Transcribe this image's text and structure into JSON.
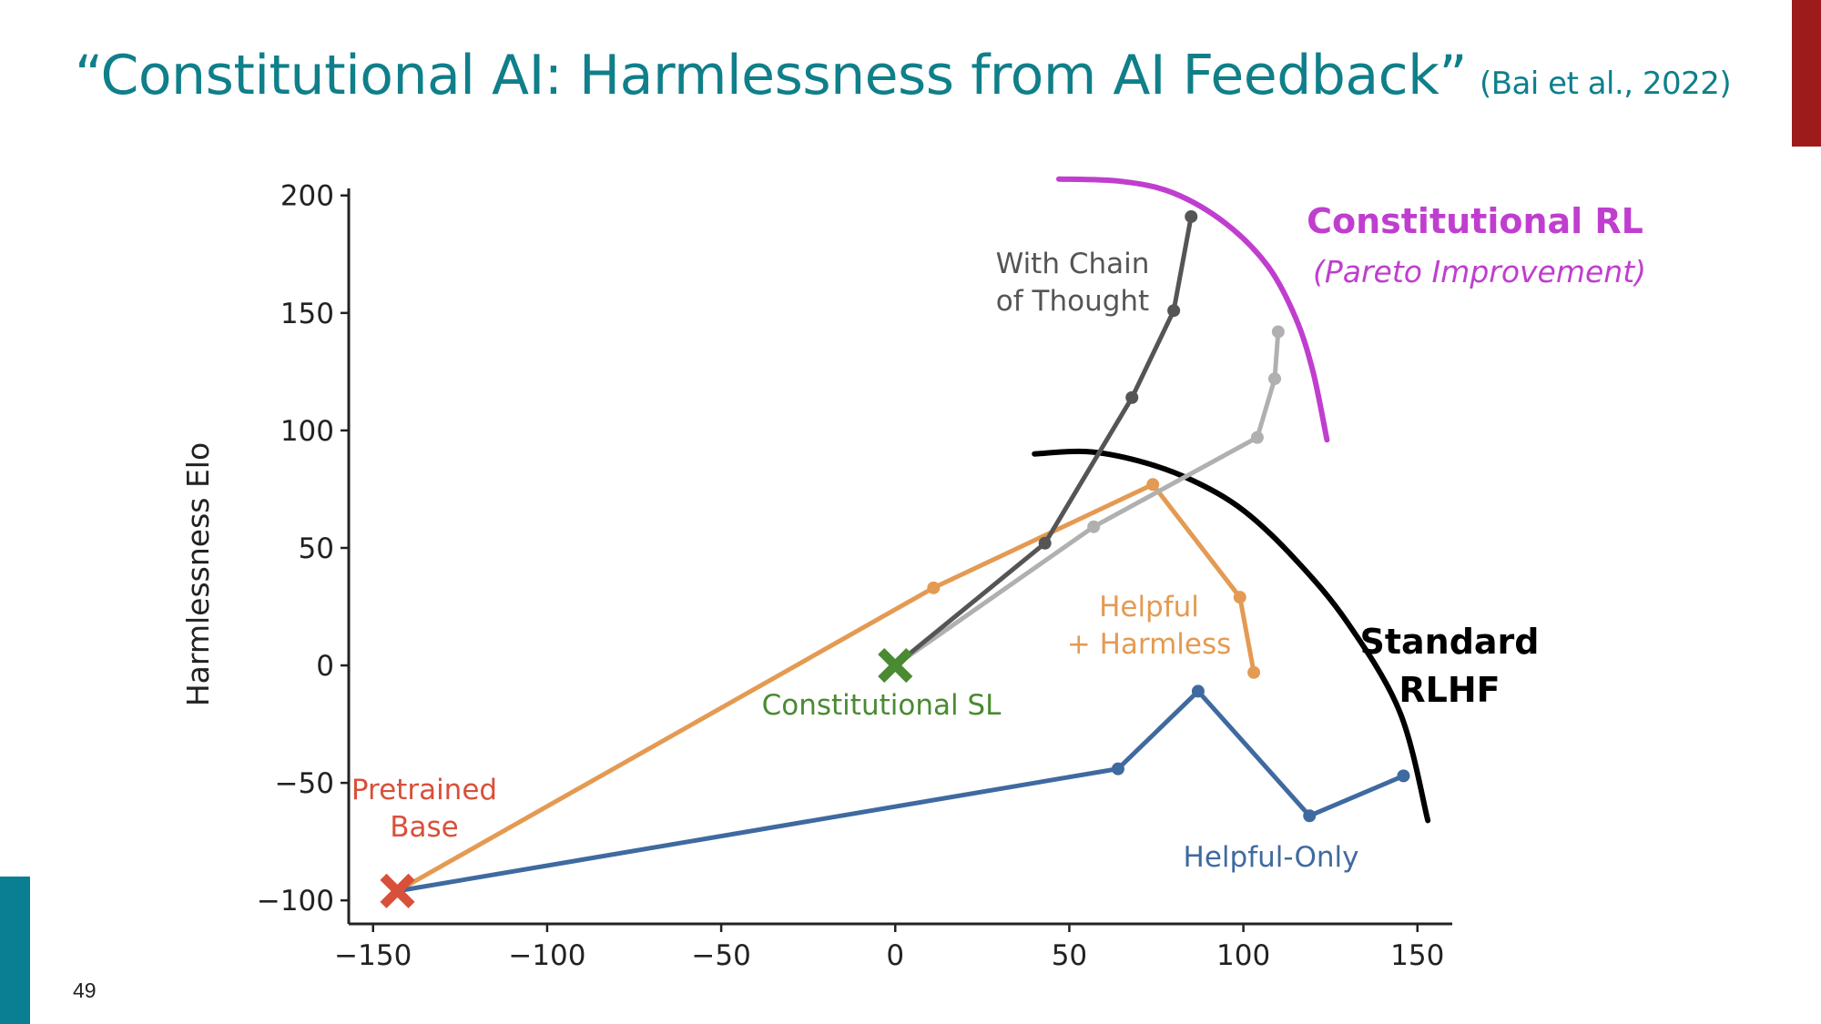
{
  "slide": {
    "title": "“Constitutional AI: Harmlessness from AI Feedback”",
    "citation": "(Bai et al., 2022)",
    "page_number": "49",
    "accent_top_color": "#9e1b1b",
    "accent_bottom_color": "#0a7f93",
    "title_color": "#0f7f8a"
  },
  "chart_data": {
    "type": "line",
    "xlabel": "",
    "ylabel": "Harmlessness Elo",
    "xlim": [
      -157,
      160
    ],
    "ylim": [
      -110,
      203
    ],
    "xticks": [
      -150,
      -100,
      -50,
      0,
      50,
      100,
      150
    ],
    "xtick_labels": [
      "−150",
      "−100",
      "−50",
      "0",
      "50",
      "100",
      "150"
    ],
    "yticks": [
      -100,
      -50,
      0,
      50,
      100,
      150,
      200
    ],
    "ytick_labels": [
      "−100",
      "−50",
      "0",
      "50",
      "100",
      "150",
      "200"
    ],
    "series": [
      {
        "name": "Helpful-Only",
        "color": "#3f6aa0",
        "points": [
          [
            -143,
            -96
          ],
          [
            64,
            -44
          ],
          [
            87,
            -11
          ],
          [
            119,
            -64
          ],
          [
            146,
            -47
          ]
        ]
      },
      {
        "name": "Helpful + Harmless",
        "color": "#e49a52",
        "points": [
          [
            -143,
            -96
          ],
          [
            11,
            33
          ],
          [
            74,
            77
          ],
          [
            99,
            29
          ],
          [
            103,
            -3
          ]
        ]
      },
      {
        "name": "Constitutional RL",
        "color": "#b0b0b0",
        "points": [
          [
            0,
            0
          ],
          [
            57,
            59
          ],
          [
            104,
            97
          ],
          [
            109,
            122
          ],
          [
            110,
            142
          ]
        ]
      },
      {
        "name": "With Chain of Thought",
        "color": "#555555",
        "points": [
          [
            0,
            0
          ],
          [
            43,
            52
          ],
          [
            68,
            114
          ],
          [
            80,
            151
          ],
          [
            85,
            191
          ]
        ]
      }
    ],
    "markers": [
      {
        "name": "Pretrained Base",
        "x": -143,
        "y": -96,
        "color": "#d9503a",
        "symbol": "X"
      },
      {
        "name": "Constitutional SL",
        "x": 0,
        "y": 0,
        "color": "#4a8a32",
        "symbol": "X"
      }
    ],
    "frontiers": [
      {
        "name": "Standard RLHF",
        "color": "#000000",
        "points": [
          [
            40,
            90
          ],
          [
            55,
            91
          ],
          [
            70,
            87
          ],
          [
            85,
            79
          ],
          [
            100,
            66
          ],
          [
            115,
            45
          ],
          [
            130,
            18
          ],
          [
            145,
            -20
          ],
          [
            153,
            -66
          ]
        ]
      },
      {
        "name": "Constitutional RL (Pareto Improvement)",
        "color": "#c03ecf",
        "points": [
          [
            47,
            207
          ],
          [
            65,
            206
          ],
          [
            80,
            201
          ],
          [
            95,
            188
          ],
          [
            107,
            170
          ],
          [
            115,
            148
          ],
          [
            120,
            125
          ],
          [
            124,
            96
          ]
        ]
      }
    ],
    "annotations": {
      "with_cot_line1": "With Chain",
      "with_cot_line2": "of Thought",
      "const_rl": "Constitutional RL",
      "pareto": "(Pareto Improvement)",
      "standard_line1": "Standard",
      "standard_line2": "RLHF",
      "helpful_harmless_line1": "Helpful",
      "helpful_harmless_line2": "+ Harmless",
      "constitutional_sl": "Constitutional SL",
      "pretrained_line1": "Pretrained",
      "pretrained_line2": "Base",
      "helpful_only": "Helpful-Only"
    },
    "annotation_colors": {
      "with_cot": "#555555",
      "const_rl": "#c03ecf",
      "standard": "#000000",
      "helpful_harmless": "#e49a52",
      "constitutional_sl": "#4a8a32",
      "pretrained": "#d9503a",
      "helpful_only": "#3f6aa0"
    }
  }
}
